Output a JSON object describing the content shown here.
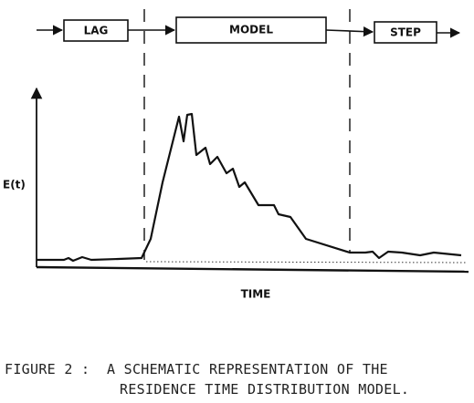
{
  "boxes": {
    "lag": "LAG",
    "model": "MODEL",
    "step": "STEP"
  },
  "axes": {
    "y_label": "E(t)",
    "x_label": "TIME"
  },
  "caption": {
    "line1": "FIGURE 2 :  A SCHEMATIC REPRESENTATION OF THE",
    "line2": "RESIDENCE TIME DISTRIBUTION MODEL."
  }
}
